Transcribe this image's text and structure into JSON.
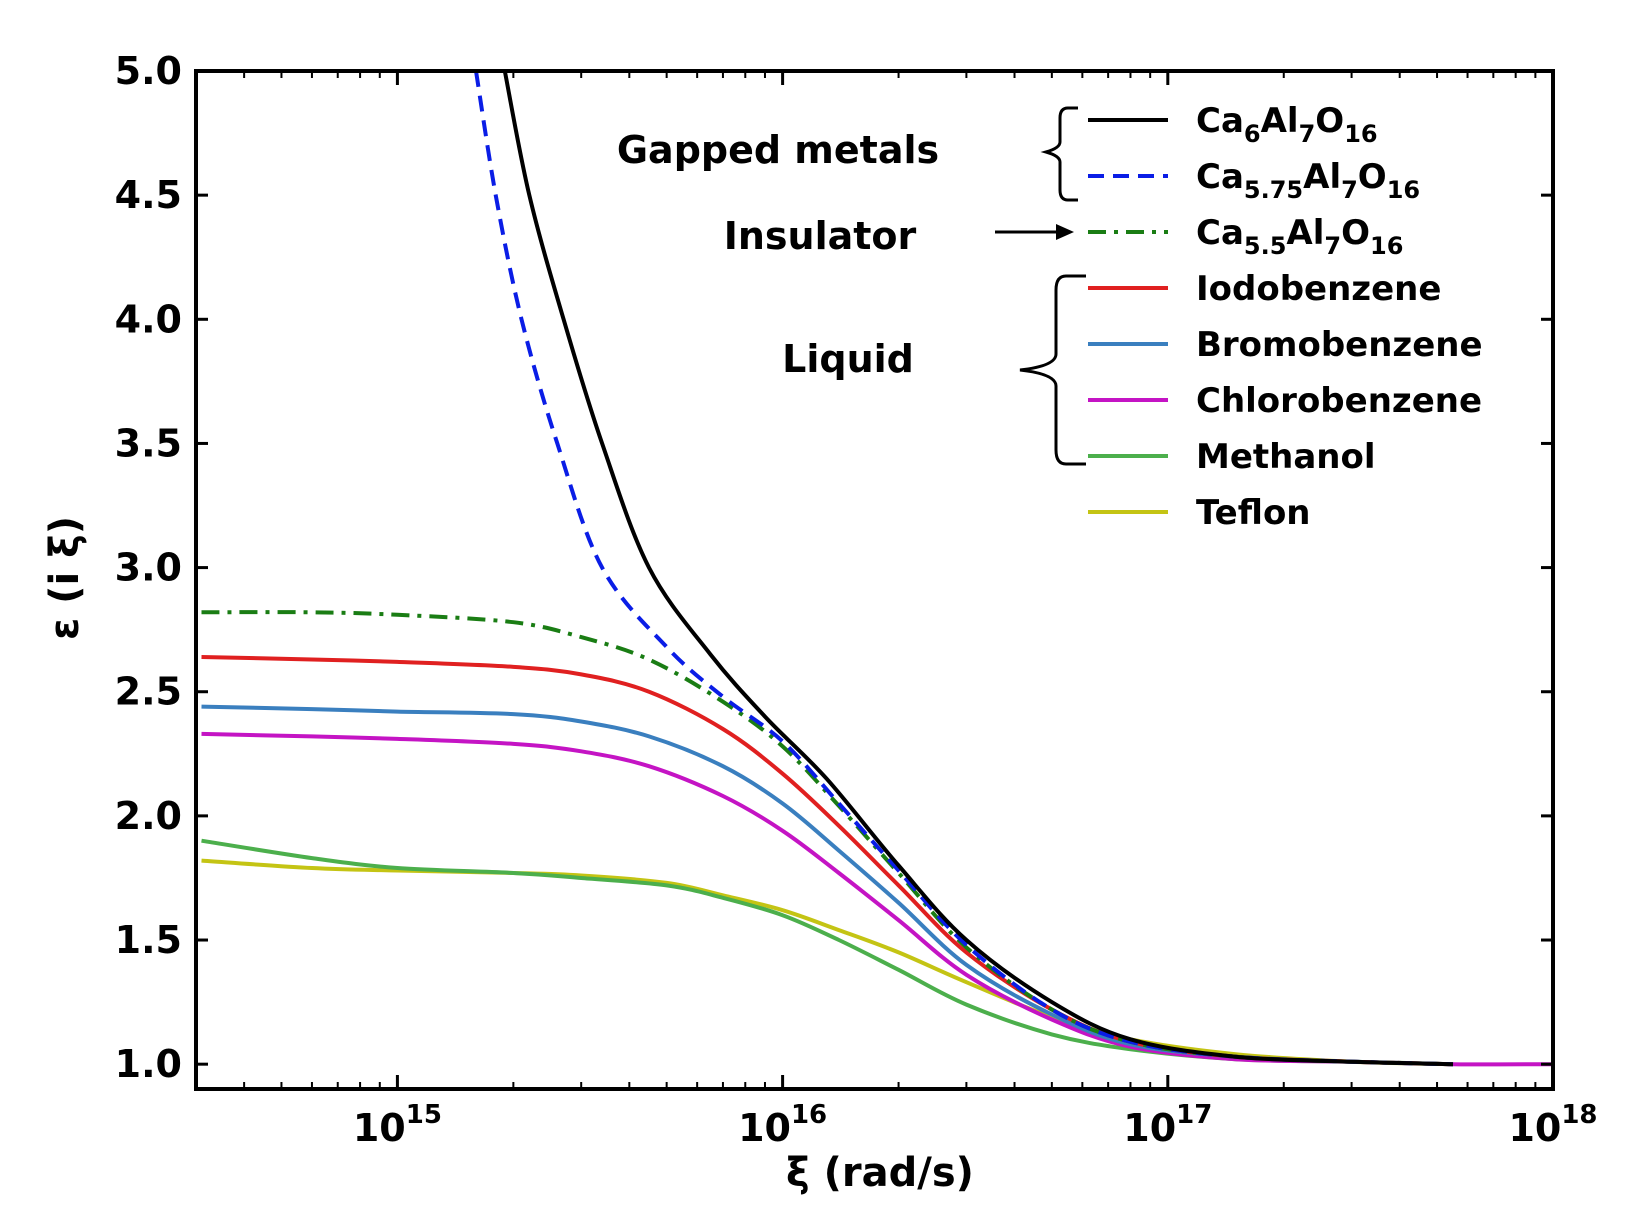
{
  "chart_data": {
    "type": "line",
    "title": "",
    "xlabel": "ξ (rad/s)",
    "ylabel": "ε (i ξ)",
    "xscale": "log",
    "xlim": [
      300000000000000,
      1000000000000000000
    ],
    "ylim": [
      0.9,
      5.0
    ],
    "x_ticks": [
      {
        "value": 1000000000000000.0,
        "base": "10",
        "exp": "15"
      },
      {
        "value": 1e+16,
        "base": "10",
        "exp": "16"
      },
      {
        "value": 1e+17,
        "base": "10",
        "exp": "17"
      },
      {
        "value": 1e+18,
        "base": "10",
        "exp": "18"
      }
    ],
    "y_ticks": [
      "1.0",
      "1.5",
      "2.0",
      "2.5",
      "3.0",
      "3.5",
      "4.0",
      "4.5",
      "5.0"
    ],
    "y_tick_values": [
      1.0,
      1.5,
      2.0,
      2.5,
      3.0,
      3.5,
      4.0,
      4.5,
      5.0
    ],
    "series": [
      {
        "name": "Ca6Al7O16",
        "color": "#000000",
        "dash": "solid",
        "label_parts": [
          [
            "Ca",
            ""
          ],
          [
            "6",
            "sub"
          ],
          [
            "Al",
            ""
          ],
          [
            "7",
            "sub"
          ],
          [
            "O",
            ""
          ],
          [
            "16",
            "sub"
          ]
        ],
        "points": [
          [
            1900000000000000.0,
            5.0
          ],
          [
            2200000000000000.0,
            4.5
          ],
          [
            2700000000000000.0,
            4.0
          ],
          [
            3400000000000000.0,
            3.5
          ],
          [
            4500000000000000.0,
            3.0
          ],
          [
            6500000000000000.0,
            2.65
          ],
          [
            9000000000000000.0,
            2.4
          ],
          [
            1.3e+16,
            2.15
          ],
          [
            2e+16,
            1.8
          ],
          [
            3e+16,
            1.5
          ],
          [
            5e+16,
            1.25
          ],
          [
            8e+16,
            1.1
          ],
          [
            1.5e+17,
            1.03
          ],
          [
            3e+17,
            1.01
          ],
          [
            5.5e+17,
            1.0
          ]
        ]
      },
      {
        "name": "Ca5.75Al7O16",
        "color": "#0a1de6",
        "dash": "dashed",
        "label_parts": [
          [
            "Ca",
            ""
          ],
          [
            "5.75",
            "sub"
          ],
          [
            "Al",
            ""
          ],
          [
            "7",
            "sub"
          ],
          [
            "O",
            ""
          ],
          [
            "16",
            "sub"
          ]
        ],
        "points": [
          [
            1600000000000000.0,
            5.0
          ],
          [
            1800000000000000.0,
            4.5
          ],
          [
            2100000000000000.0,
            4.0
          ],
          [
            2600000000000000.0,
            3.5
          ],
          [
            3400000000000000.0,
            3.0
          ],
          [
            5000000000000000.0,
            2.68
          ],
          [
            7000000000000000.0,
            2.48
          ],
          [
            1e+16,
            2.3
          ],
          [
            1.4e+16,
            2.05
          ],
          [
            2e+16,
            1.78
          ],
          [
            3e+16,
            1.48
          ],
          [
            5e+16,
            1.22
          ],
          [
            8e+16,
            1.09
          ],
          [
            1.5e+17,
            1.03
          ],
          [
            3e+17,
            1.01
          ],
          [
            5.5e+17,
            1.0
          ]
        ]
      },
      {
        "name": "Ca5.5Al7O16",
        "color": "#1a7d14",
        "dash": "dashdot",
        "label_parts": [
          [
            "Ca",
            ""
          ],
          [
            "5.5",
            "sub"
          ],
          [
            "Al",
            ""
          ],
          [
            "7",
            "sub"
          ],
          [
            "O",
            ""
          ],
          [
            "16",
            "sub"
          ]
        ],
        "points": [
          [
            310000000000000.0,
            2.82
          ],
          [
            600000000000000.0,
            2.82
          ],
          [
            1000000000000000.0,
            2.81
          ],
          [
            2000000000000000.0,
            2.78
          ],
          [
            3000000000000000.0,
            2.72
          ],
          [
            4500000000000000.0,
            2.63
          ],
          [
            7000000000000000.0,
            2.46
          ],
          [
            1e+16,
            2.28
          ],
          [
            1.4e+16,
            2.04
          ],
          [
            2e+16,
            1.77
          ],
          [
            3e+16,
            1.47
          ],
          [
            5e+16,
            1.22
          ],
          [
            8e+16,
            1.09
          ],
          [
            1.5e+17,
            1.03
          ],
          [
            3e+17,
            1.01
          ],
          [
            5.5e+17,
            1.0
          ]
        ]
      },
      {
        "name": "Iodobenzene",
        "color": "#e02020",
        "dash": "solid",
        "label_parts": [
          [
            "Iodobenzene",
            ""
          ]
        ],
        "points": [
          [
            310000000000000.0,
            2.64
          ],
          [
            600000000000000.0,
            2.63
          ],
          [
            1000000000000000.0,
            2.62
          ],
          [
            2000000000000000.0,
            2.6
          ],
          [
            3000000000000000.0,
            2.57
          ],
          [
            4500000000000000.0,
            2.5
          ],
          [
            7000000000000000.0,
            2.35
          ],
          [
            1e+16,
            2.17
          ],
          [
            1.4e+16,
            1.96
          ],
          [
            2e+16,
            1.72
          ],
          [
            3e+16,
            1.45
          ],
          [
            5e+16,
            1.22
          ],
          [
            8e+16,
            1.09
          ],
          [
            1.5e+17,
            1.03
          ],
          [
            3e+17,
            1.01
          ],
          [
            5.5e+17,
            1.0
          ]
        ]
      },
      {
        "name": "Bromobenzene",
        "color": "#3a7fbf",
        "dash": "solid",
        "label_parts": [
          [
            "Bromobenzene",
            ""
          ]
        ],
        "points": [
          [
            310000000000000.0,
            2.44
          ],
          [
            600000000000000.0,
            2.43
          ],
          [
            1000000000000000.0,
            2.42
          ],
          [
            2000000000000000.0,
            2.41
          ],
          [
            3000000000000000.0,
            2.38
          ],
          [
            4500000000000000.0,
            2.32
          ],
          [
            7000000000000000.0,
            2.2
          ],
          [
            1e+16,
            2.05
          ],
          [
            1.4e+16,
            1.86
          ],
          [
            2e+16,
            1.65
          ],
          [
            3e+16,
            1.4
          ],
          [
            5e+16,
            1.2
          ],
          [
            8e+16,
            1.08
          ],
          [
            1.5e+17,
            1.03
          ],
          [
            3e+17,
            1.01
          ],
          [
            5.5e+17,
            1.0
          ]
        ]
      },
      {
        "name": "Chlorobenzene",
        "color": "#c414c4",
        "dash": "solid",
        "label_parts": [
          [
            "Chlorobenzene",
            ""
          ]
        ],
        "points": [
          [
            310000000000000.0,
            2.33
          ],
          [
            600000000000000.0,
            2.32
          ],
          [
            1000000000000000.0,
            2.31
          ],
          [
            2000000000000000.0,
            2.29
          ],
          [
            3000000000000000.0,
            2.26
          ],
          [
            4500000000000000.0,
            2.2
          ],
          [
            7000000000000000.0,
            2.08
          ],
          [
            1e+16,
            1.94
          ],
          [
            1.4e+16,
            1.77
          ],
          [
            2e+16,
            1.58
          ],
          [
            3e+16,
            1.36
          ],
          [
            5e+16,
            1.18
          ],
          [
            8e+16,
            1.07
          ],
          [
            1.5e+17,
            1.02
          ],
          [
            3e+17,
            1.01
          ],
          [
            5.5e+17,
            1.0
          ],
          [
            1e+18,
            1.0
          ]
        ]
      },
      {
        "name": "Methanol",
        "color": "#4caf4c",
        "dash": "solid",
        "label_parts": [
          [
            "Methanol",
            ""
          ]
        ],
        "points": [
          [
            310000000000000.0,
            1.9
          ],
          [
            600000000000000.0,
            1.83
          ],
          [
            1000000000000000.0,
            1.79
          ],
          [
            2000000000000000.0,
            1.77
          ],
          [
            3000000000000000.0,
            1.75
          ],
          [
            5000000000000000.0,
            1.72
          ],
          [
            7000000000000000.0,
            1.67
          ],
          [
            1e+16,
            1.6
          ],
          [
            1.4e+16,
            1.5
          ],
          [
            2e+16,
            1.38
          ],
          [
            3e+16,
            1.24
          ],
          [
            5e+16,
            1.12
          ],
          [
            8e+16,
            1.06
          ],
          [
            1.5e+17,
            1.02
          ],
          [
            3e+17,
            1.01
          ],
          [
            5.5e+17,
            1.0
          ]
        ]
      },
      {
        "name": "Teflon",
        "color": "#c4c414",
        "dash": "solid",
        "label_parts": [
          [
            "Teflon",
            ""
          ]
        ],
        "points": [
          [
            310000000000000.0,
            1.82
          ],
          [
            600000000000000.0,
            1.79
          ],
          [
            1000000000000000.0,
            1.78
          ],
          [
            2000000000000000.0,
            1.77
          ],
          [
            3000000000000000.0,
            1.76
          ],
          [
            5000000000000000.0,
            1.73
          ],
          [
            7000000000000000.0,
            1.68
          ],
          [
            1e+16,
            1.62
          ],
          [
            1.4e+16,
            1.54
          ],
          [
            2e+16,
            1.45
          ],
          [
            3e+16,
            1.33
          ],
          [
            5e+16,
            1.19
          ],
          [
            8e+16,
            1.1
          ],
          [
            1.5e+17,
            1.04
          ],
          [
            3e+17,
            1.01
          ],
          [
            5.5e+17,
            1.0
          ]
        ]
      }
    ],
    "annotations": {
      "gapped": "Gapped metals",
      "insulator": "Insulator",
      "liquid": "Liquid"
    },
    "legend_position": "top-right"
  }
}
